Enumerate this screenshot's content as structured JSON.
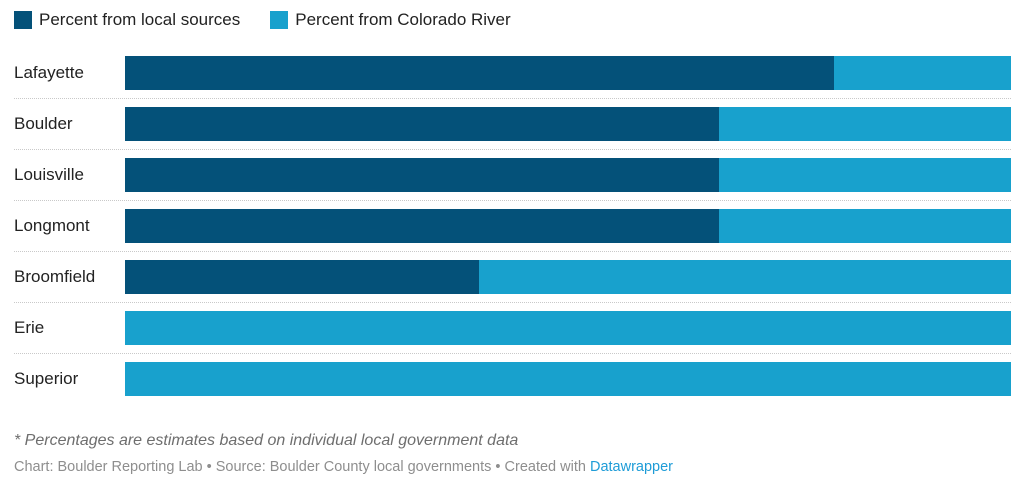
{
  "legend": {
    "items": [
      {
        "label": "Percent from local sources",
        "color": "#045179"
      },
      {
        "label": "Percent from Colorado River",
        "color": "#18a1cd"
      }
    ]
  },
  "chart_data": {
    "type": "bar",
    "orientation": "horizontal",
    "stacked": true,
    "categories": [
      "Lafayette",
      "Boulder",
      "Louisville",
      "Longmont",
      "Broomfield",
      "Erie",
      "Superior"
    ],
    "series": [
      {
        "name": "Percent from local sources",
        "color": "#045179",
        "values": [
          80,
          67,
          67,
          67,
          40,
          0,
          0
        ]
      },
      {
        "name": "Percent from Colorado River",
        "color": "#18a1cd",
        "values": [
          20,
          33,
          33,
          33,
          60,
          100,
          100
        ]
      }
    ],
    "xlim": [
      0,
      100
    ],
    "grid": "dotted-row-separators",
    "legend_position": "top"
  },
  "footer": {
    "footnote": "* Percentages are estimates based on individual local government data",
    "credits_prefix": "Chart: Boulder Reporting Lab • Source: Boulder County local governments • Created with ",
    "credits_link_label": "Datawrapper",
    "credits_link_color": "#1e9cd7"
  }
}
